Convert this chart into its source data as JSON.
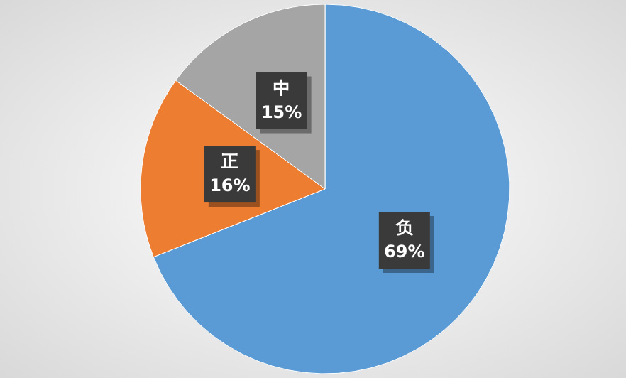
{
  "chart_data": {
    "type": "pie",
    "categories": [
      "负",
      "正",
      "中"
    ],
    "values": [
      69,
      16,
      15
    ],
    "colors": [
      "#5b9bd5",
      "#ed7d31",
      "#a5a5a5"
    ],
    "value_labels": [
      "69%",
      "16%",
      "15%"
    ]
  }
}
